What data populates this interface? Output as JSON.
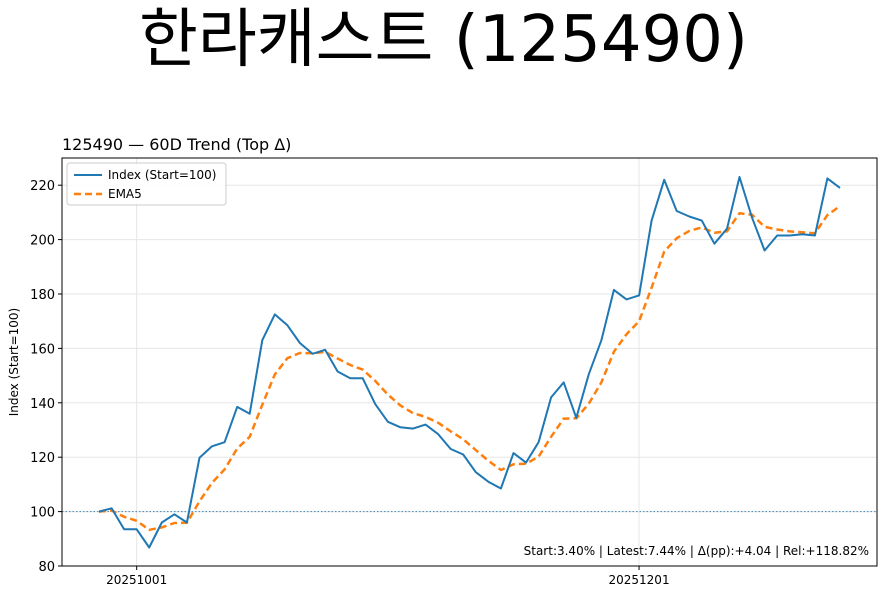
{
  "page_title": "한라캐스트 (125490)",
  "chart_data": {
    "type": "line",
    "title": "125490 — 60D Trend (Top Δ)",
    "xlabel": "",
    "ylabel": "Index (Start=100)",
    "ylim": [
      80,
      230
    ],
    "yticks": [
      80,
      100,
      120,
      140,
      160,
      180,
      200,
      220
    ],
    "xticks": [
      {
        "label": "20251001",
        "index": 3
      },
      {
        "label": "20251201",
        "index": 43
      }
    ],
    "grid": true,
    "legend_position": "top-left",
    "baseline": {
      "y": 100,
      "color": "#1f77b4",
      "style": "dotted"
    },
    "annotation": "Start:3.40% | Latest:7.44% | Δ(pp):+4.04 | Rel:+118.82%",
    "series": [
      {
        "name": "Index (Start=100)",
        "color": "#1f77b4",
        "style": "solid",
        "values": [
          100,
          101.2,
          93.5,
          93.5,
          86.8,
          96,
          99,
          96,
          119.8,
          124,
          125.5,
          138.5,
          136,
          163,
          172.5,
          168.5,
          162,
          158,
          159.5,
          151.5,
          149,
          149,
          139.5,
          133,
          131,
          130.5,
          132,
          128.5,
          123,
          121,
          114.5,
          111,
          108.5,
          121.5,
          118,
          125.5,
          142,
          147.5,
          134.5,
          150.5,
          163,
          181.5,
          178,
          179.5,
          207,
          222,
          210.5,
          208.5,
          207,
          198.5,
          204,
          223,
          208,
          196,
          201.5,
          201.5,
          202,
          201.5,
          222.5,
          219
        ]
      },
      {
        "name": "EMA5",
        "color": "#ff7f0e",
        "style": "dashed",
        "values": [
          100,
          100.4,
          98.1,
          96.6,
          93.3,
          94.2,
          95.8,
          95.9,
          103.8,
          110.6,
          115.5,
          123.2,
          127.5,
          139.3,
          150.4,
          156.4,
          158.3,
          158.2,
          158.7,
          156.3,
          153.9,
          152.2,
          148,
          143,
          139,
          136.2,
          134.8,
          132.7,
          129.5,
          126.6,
          122.6,
          118.7,
          115.3,
          117.4,
          117.6,
          120.2,
          127.5,
          134.2,
          134.3,
          139.7,
          147.5,
          158.8,
          165.2,
          170,
          182.3,
          195.6,
          200.5,
          203.2,
          204.5,
          202.5,
          203,
          209.7,
          209.1,
          204.7,
          203.7,
          203,
          202.7,
          202.3,
          209,
          212.3
        ]
      }
    ]
  }
}
